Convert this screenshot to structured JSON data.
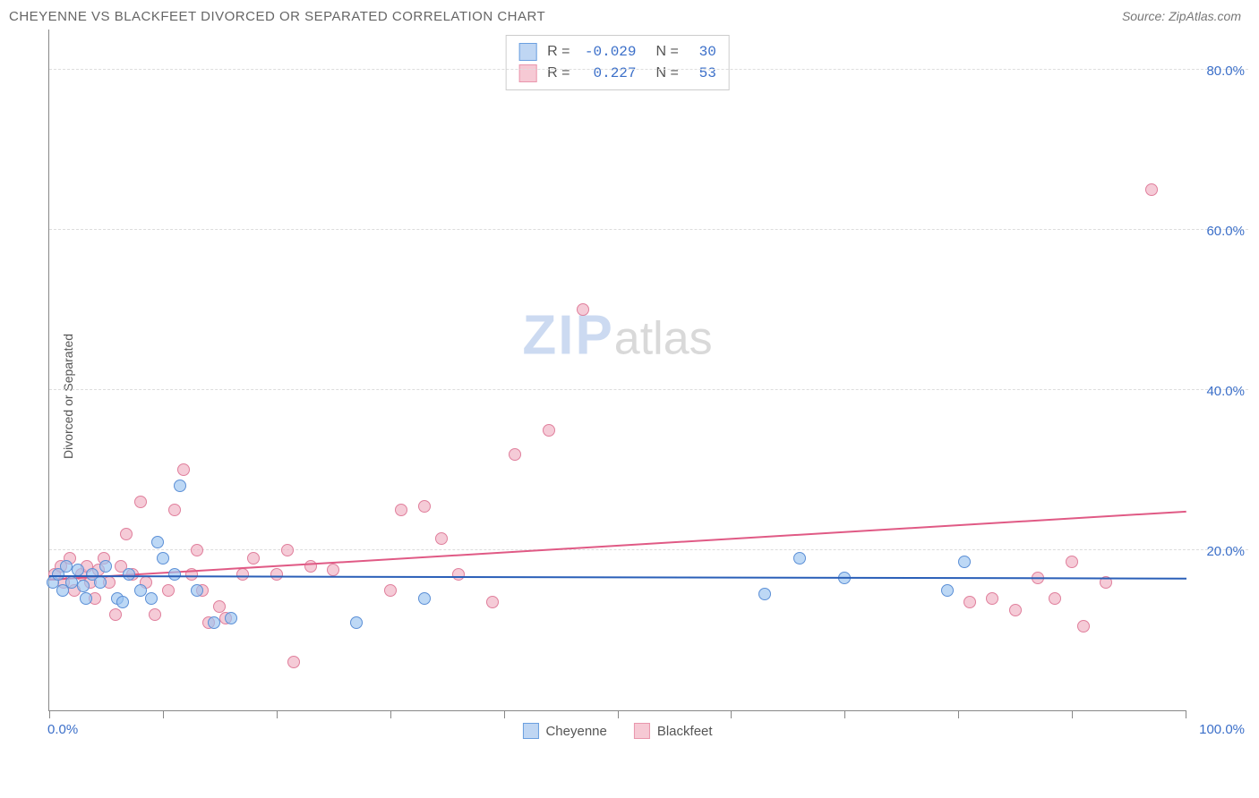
{
  "header": {
    "title": "CHEYENNE VS BLACKFEET DIVORCED OR SEPARATED CORRELATION CHART",
    "source_prefix": "Source: ",
    "source_name": "ZipAtlas.com"
  },
  "axes": {
    "y_label": "Divorced or Separated",
    "y_label_color": "#555555",
    "x_min": 0,
    "x_max": 100,
    "y_min": 0,
    "y_max": 85,
    "y_ticks": [
      {
        "v": 20,
        "label": "20.0%"
      },
      {
        "v": 40,
        "label": "40.0%"
      },
      {
        "v": 60,
        "label": "60.0%"
      },
      {
        "v": 80,
        "label": "80.0%"
      }
    ],
    "x_ticks_major": [
      0,
      10,
      20,
      30,
      40,
      50,
      60,
      70,
      80,
      90,
      100
    ],
    "x_labels": [
      {
        "v": 0,
        "label": "0.0%"
      },
      {
        "v": 100,
        "label": "100.0%"
      }
    ],
    "tick_label_color": "#3b6fc9",
    "grid_color": "#dddddd",
    "axis_color": "#888888"
  },
  "watermark": {
    "zip": "ZIP",
    "atlas": "atlas"
  },
  "legend_top": {
    "rows": [
      {
        "swatch_fill": "#bfd6f3",
        "swatch_border": "#6a9fe0",
        "r_label": "R =",
        "r_value": "-0.029",
        "n_label": "N =",
        "n_value": "30"
      },
      {
        "swatch_fill": "#f6c9d4",
        "swatch_border": "#e996ac",
        "r_label": "R =",
        "r_value": "0.227",
        "n_label": "N =",
        "n_value": "53"
      }
    ],
    "value_color": "#3b6fc9",
    "label_color": "#555555"
  },
  "legend_bottom": {
    "items": [
      {
        "swatch_fill": "#bfd6f3",
        "swatch_border": "#6a9fe0",
        "label": "Cheyenne"
      },
      {
        "swatch_fill": "#f6c9d4",
        "swatch_border": "#e996ac",
        "label": "Blackfeet"
      }
    ]
  },
  "series": {
    "cheyenne": {
      "marker_fill": "rgba(154,195,240,0.65)",
      "marker_border": "#5b8fd6",
      "marker_size": 14,
      "trend_color": "#2a5fb8",
      "trend": {
        "x1": 0,
        "y1": 17.0,
        "x2": 100,
        "y2": 16.7
      },
      "points": [
        {
          "x": 0.3,
          "y": 16
        },
        {
          "x": 0.8,
          "y": 17
        },
        {
          "x": 1.2,
          "y": 15
        },
        {
          "x": 1.5,
          "y": 18
        },
        {
          "x": 2.0,
          "y": 16
        },
        {
          "x": 2.5,
          "y": 17.5
        },
        {
          "x": 3.0,
          "y": 15.5
        },
        {
          "x": 3.2,
          "y": 14
        },
        {
          "x": 3.8,
          "y": 17
        },
        {
          "x": 4.5,
          "y": 16
        },
        {
          "x": 5.0,
          "y": 18
        },
        {
          "x": 6.0,
          "y": 14
        },
        {
          "x": 6.5,
          "y": 13.5
        },
        {
          "x": 7.0,
          "y": 17
        },
        {
          "x": 8.0,
          "y": 15
        },
        {
          "x": 9.0,
          "y": 14
        },
        {
          "x": 9.5,
          "y": 21
        },
        {
          "x": 10.0,
          "y": 19
        },
        {
          "x": 11.0,
          "y": 17
        },
        {
          "x": 11.5,
          "y": 28
        },
        {
          "x": 13.0,
          "y": 15
        },
        {
          "x": 14.5,
          "y": 11
        },
        {
          "x": 16.0,
          "y": 11.5
        },
        {
          "x": 27.0,
          "y": 11
        },
        {
          "x": 33.0,
          "y": 14
        },
        {
          "x": 66.0,
          "y": 19
        },
        {
          "x": 70.0,
          "y": 16.5
        },
        {
          "x": 63.0,
          "y": 14.5
        },
        {
          "x": 79.0,
          "y": 15
        },
        {
          "x": 80.5,
          "y": 18.5
        }
      ]
    },
    "blackfeet": {
      "marker_fill": "rgba(240,175,193,0.65)",
      "marker_border": "#e07f9c",
      "marker_size": 14,
      "trend_color": "#e05a85",
      "trend": {
        "x1": 0,
        "y1": 16.5,
        "x2": 100,
        "y2": 25.0
      },
      "points": [
        {
          "x": 0.5,
          "y": 17
        },
        {
          "x": 1.0,
          "y": 18
        },
        {
          "x": 1.3,
          "y": 16
        },
        {
          "x": 1.8,
          "y": 19
        },
        {
          "x": 2.2,
          "y": 15
        },
        {
          "x": 2.8,
          "y": 17
        },
        {
          "x": 3.3,
          "y": 18
        },
        {
          "x": 3.6,
          "y": 16
        },
        {
          "x": 4.0,
          "y": 14
        },
        {
          "x": 4.3,
          "y": 17.5
        },
        {
          "x": 4.8,
          "y": 19
        },
        {
          "x": 5.3,
          "y": 16
        },
        {
          "x": 5.8,
          "y": 12
        },
        {
          "x": 6.3,
          "y": 18
        },
        {
          "x": 6.8,
          "y": 22
        },
        {
          "x": 7.3,
          "y": 17
        },
        {
          "x": 8.0,
          "y": 26
        },
        {
          "x": 8.5,
          "y": 16
        },
        {
          "x": 9.3,
          "y": 12
        },
        {
          "x": 10.5,
          "y": 15
        },
        {
          "x": 11.0,
          "y": 25
        },
        {
          "x": 11.8,
          "y": 30
        },
        {
          "x": 12.5,
          "y": 17
        },
        {
          "x": 13.0,
          "y": 20
        },
        {
          "x": 13.5,
          "y": 15
        },
        {
          "x": 14.0,
          "y": 11
        },
        {
          "x": 15.0,
          "y": 13
        },
        {
          "x": 15.5,
          "y": 11.5
        },
        {
          "x": 17.0,
          "y": 17
        },
        {
          "x": 18.0,
          "y": 19
        },
        {
          "x": 20.0,
          "y": 17
        },
        {
          "x": 21.0,
          "y": 20
        },
        {
          "x": 21.5,
          "y": 6
        },
        {
          "x": 23.0,
          "y": 18
        },
        {
          "x": 25.0,
          "y": 17.5
        },
        {
          "x": 30.0,
          "y": 15
        },
        {
          "x": 31.0,
          "y": 25
        },
        {
          "x": 33.0,
          "y": 25.5
        },
        {
          "x": 34.5,
          "y": 21.5
        },
        {
          "x": 36.0,
          "y": 17
        },
        {
          "x": 39.0,
          "y": 13.5
        },
        {
          "x": 41.0,
          "y": 32
        },
        {
          "x": 44.0,
          "y": 35
        },
        {
          "x": 47.0,
          "y": 50
        },
        {
          "x": 81.0,
          "y": 13.5
        },
        {
          "x": 83.0,
          "y": 14
        },
        {
          "x": 85.0,
          "y": 12.5
        },
        {
          "x": 87.0,
          "y": 16.5
        },
        {
          "x": 88.5,
          "y": 14
        },
        {
          "x": 90.0,
          "y": 18.5
        },
        {
          "x": 91.0,
          "y": 10.5
        },
        {
          "x": 97.0,
          "y": 65
        },
        {
          "x": 93.0,
          "y": 16
        }
      ]
    }
  }
}
